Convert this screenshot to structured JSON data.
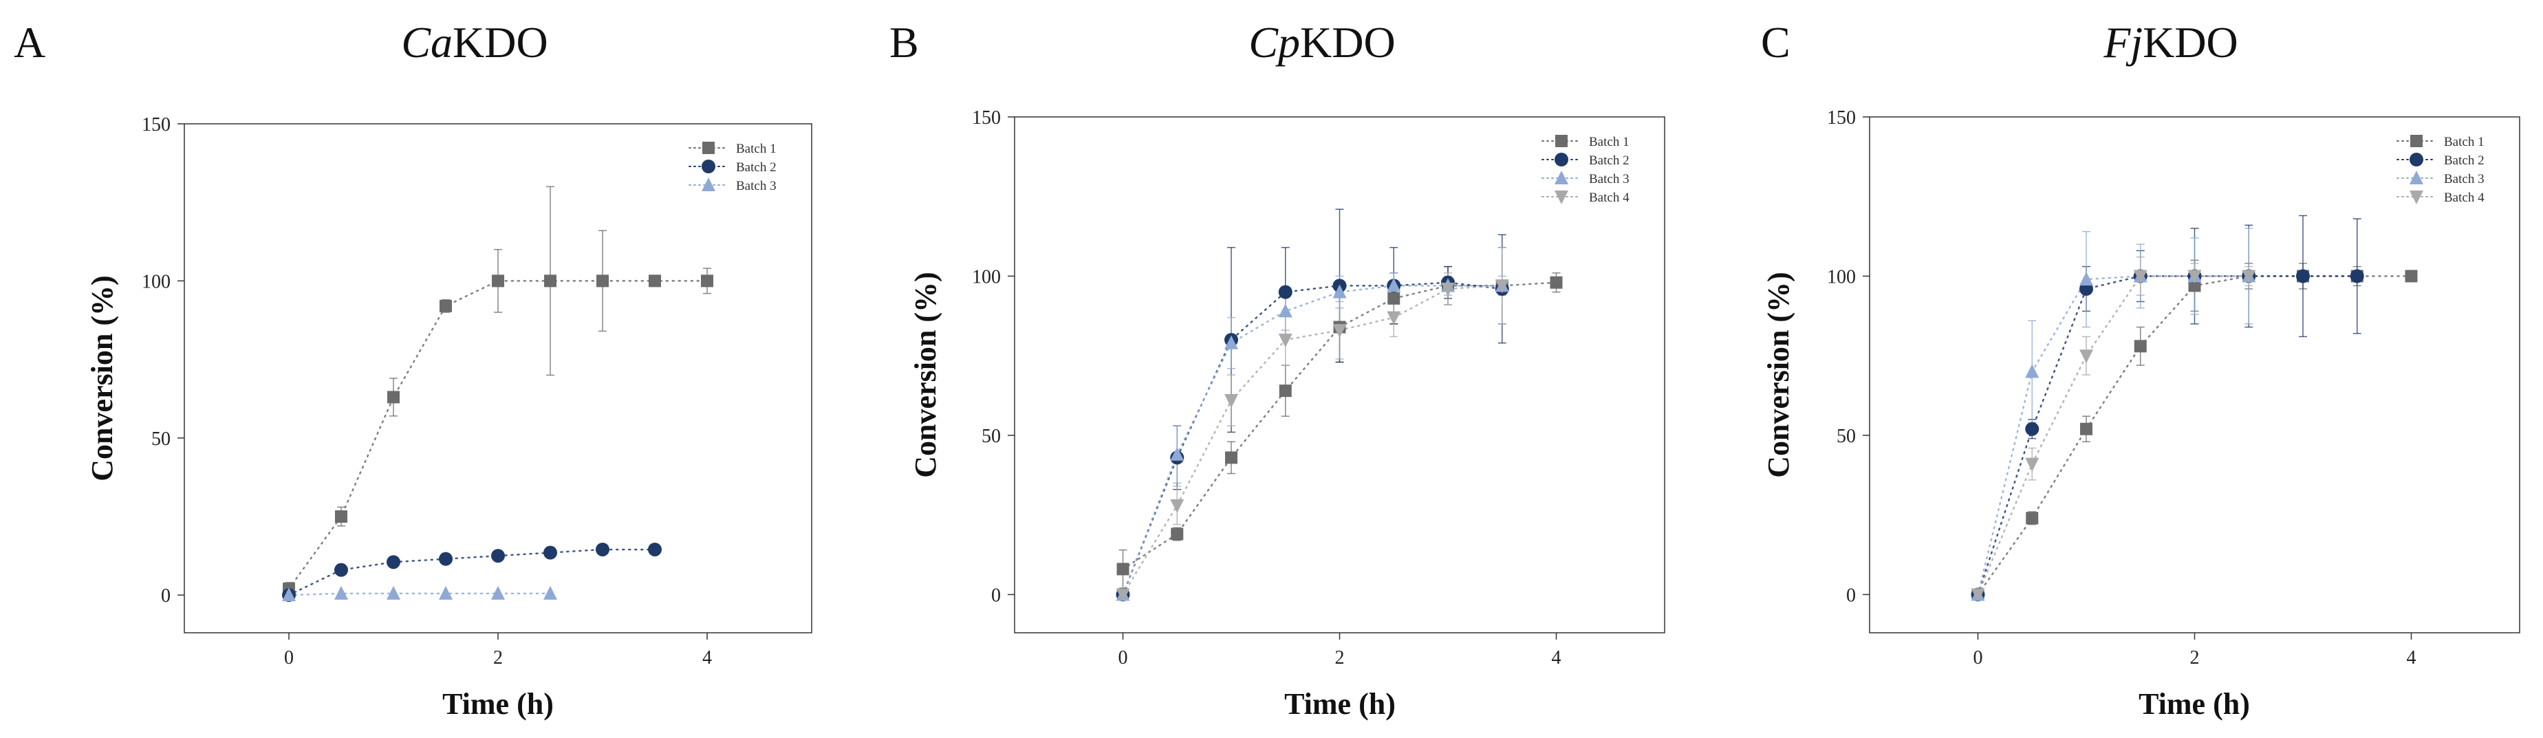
{
  "chart_data": [
    {
      "type": "scatter",
      "panel_letter": "A",
      "title_italic": "Ca",
      "title_rest": "KDO",
      "xlabel": "Time (h)",
      "ylabel": "Conversion (%)",
      "xlim": [
        -1,
        5
      ],
      "ylim": [
        -12,
        150
      ],
      "xticks": [
        0,
        2,
        4
      ],
      "yticks": [
        0,
        50,
        100,
        150
      ],
      "legend": "top-right",
      "series": [
        {
          "name": "Batch 1",
          "marker": "square",
          "color": "#6b6b6b",
          "x": [
            0,
            0.5,
            1,
            1.5,
            2,
            2.5,
            3,
            3.5,
            4
          ],
          "y": [
            2,
            25,
            63,
            92,
            100,
            100,
            100,
            100,
            100
          ],
          "err": [
            2,
            3,
            6,
            2,
            10,
            30,
            16,
            0,
            4
          ]
        },
        {
          "name": "Batch 2",
          "marker": "circle",
          "color": "#1f3a68",
          "x": [
            0,
            0.5,
            1,
            1.5,
            2,
            2.5,
            3,
            3.5
          ],
          "y": [
            0,
            8,
            10.5,
            11.5,
            12.5,
            13.5,
            14.5,
            14.5
          ],
          "err": [
            0,
            1,
            1,
            1,
            1,
            1,
            1,
            1
          ]
        },
        {
          "name": "Batch 3",
          "marker": "triangle-up",
          "color": "#8fa9d6",
          "x": [
            0,
            0.5,
            1,
            1.5,
            2,
            2.5
          ],
          "y": [
            0,
            0.5,
            0.5,
            0.5,
            0.5,
            0.5
          ],
          "err": [
            0,
            0,
            0,
            0,
            0,
            0
          ]
        }
      ]
    },
    {
      "type": "scatter",
      "panel_letter": "B",
      "title_italic": "Cp",
      "title_rest": "KDO",
      "xlabel": "Time (h)",
      "ylabel": "Conversion (%)",
      "xlim": [
        -1,
        5
      ],
      "ylim": [
        -12,
        150
      ],
      "xticks": [
        0,
        2,
        4
      ],
      "yticks": [
        0,
        50,
        100,
        150
      ],
      "legend": "top-right",
      "series": [
        {
          "name": "Batch 1",
          "marker": "square",
          "color": "#6b6b6b",
          "x": [
            0,
            0.5,
            1,
            1.5,
            2,
            2.5,
            3,
            3.5,
            4
          ],
          "y": [
            8,
            19,
            43,
            64,
            84,
            93,
            97,
            97,
            98
          ],
          "err": [
            6,
            2,
            5,
            8,
            11,
            8,
            6,
            12,
            3
          ]
        },
        {
          "name": "Batch 2",
          "marker": "circle",
          "color": "#1f3a68",
          "x": [
            0,
            0.5,
            1,
            1.5,
            2,
            2.5,
            3,
            3.5
          ],
          "y": [
            0,
            43,
            80,
            95,
            97,
            97,
            98,
            96
          ],
          "err": [
            0,
            10,
            29,
            14,
            24,
            12,
            5,
            17
          ]
        },
        {
          "name": "Batch 3",
          "marker": "triangle-up",
          "color": "#8fa9d6",
          "x": [
            0,
            0.5,
            1,
            1.5,
            2,
            2.5,
            3,
            3.5
          ],
          "y": [
            0,
            44,
            79,
            89,
            95,
            97,
            97,
            97
          ],
          "err": [
            0,
            9,
            8,
            6,
            5,
            4,
            3,
            3
          ]
        },
        {
          "name": "Batch 4",
          "marker": "triangle-down",
          "color": "#a9a9a9",
          "x": [
            0,
            0.5,
            1,
            1.5,
            2,
            2.5,
            3,
            3.5
          ],
          "y": [
            0,
            28,
            61,
            80,
            83,
            87,
            96,
            97
          ],
          "err": [
            0,
            6,
            8,
            8,
            9,
            6,
            5,
            12
          ]
        }
      ]
    },
    {
      "type": "scatter",
      "panel_letter": "C",
      "title_italic": "Fj",
      "title_rest": "KDO",
      "xlabel": "Time (h)",
      "ylabel": "Conversion (%)",
      "xlim": [
        -1,
        5
      ],
      "ylim": [
        -12,
        150
      ],
      "xticks": [
        0,
        2,
        4
      ],
      "yticks": [
        0,
        50,
        100,
        150
      ],
      "legend": "top-right",
      "series": [
        {
          "name": "Batch 1",
          "marker": "square",
          "color": "#6b6b6b",
          "x": [
            0,
            0.5,
            1,
            1.5,
            2,
            2.5,
            3,
            3.5,
            4
          ],
          "y": [
            0,
            24,
            52,
            78,
            97,
            100,
            100,
            100,
            100
          ],
          "err": [
            0,
            2,
            4,
            6,
            8,
            4,
            4,
            3,
            1
          ]
        },
        {
          "name": "Batch 2",
          "marker": "circle",
          "color": "#1f3a68",
          "x": [
            0,
            0.5,
            1,
            1.5,
            2,
            2.5,
            3,
            3.5
          ],
          "y": [
            0,
            52,
            96,
            100,
            100,
            100,
            100,
            100
          ],
          "err": [
            0,
            3,
            7,
            8,
            15,
            16,
            19,
            18
          ]
        },
        {
          "name": "Batch 3",
          "marker": "triangle-up",
          "color": "#8fa9d6",
          "x": [
            0,
            0.5,
            1,
            1.5,
            2,
            2.5
          ],
          "y": [
            0,
            70,
            99,
            100,
            100,
            100
          ],
          "err": [
            0,
            16,
            15,
            10,
            12,
            15
          ]
        },
        {
          "name": "Batch 4",
          "marker": "triangle-down",
          "color": "#a9a9a9",
          "x": [
            0,
            0.5,
            1,
            1.5,
            2,
            2.5
          ],
          "y": [
            0,
            41,
            75,
            100,
            100,
            100
          ],
          "err": [
            0,
            5,
            6,
            6,
            4,
            3
          ]
        }
      ]
    }
  ]
}
